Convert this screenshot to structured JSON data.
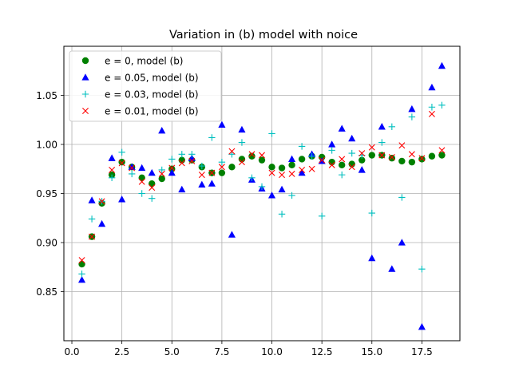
{
  "chart_data": {
    "type": "scatter",
    "title": "Variation in (b) model with noice",
    "xlabel": "",
    "ylabel": "",
    "xlim": [
      -0.4,
      19.4
    ],
    "ylim": [
      0.8,
      1.1
    ],
    "xticks": [
      0.0,
      2.5,
      5.0,
      7.5,
      10.0,
      12.5,
      15.0,
      17.5
    ],
    "xtick_labels": [
      "0.0",
      "2.5",
      "5.0",
      "7.5",
      "10.0",
      "12.5",
      "15.0",
      "17.5"
    ],
    "yticks": [
      0.85,
      0.9,
      0.95,
      1.0,
      1.05
    ],
    "ytick_labels": [
      "0.85",
      "0.90",
      "0.95",
      "1.00",
      "1.05"
    ],
    "grid": true,
    "legend_position": "top-left",
    "x": [
      0.5,
      1.0,
      1.5,
      2.0,
      2.5,
      3.0,
      3.5,
      4.0,
      4.5,
      5.0,
      5.5,
      6.0,
      6.5,
      7.0,
      7.5,
      8.0,
      8.5,
      9.0,
      9.5,
      10.0,
      10.5,
      11.0,
      11.5,
      12.0,
      12.5,
      13.0,
      13.5,
      14.0,
      14.5,
      15.0,
      15.5,
      16.0,
      16.5,
      17.0,
      17.5,
      18.0,
      18.5
    ],
    "series": [
      {
        "name": "e = 0, model (b)",
        "marker": "circle",
        "color": "#008000",
        "values": [
          0.878,
          0.906,
          0.94,
          0.969,
          0.982,
          0.977,
          0.966,
          0.96,
          0.965,
          0.975,
          0.984,
          0.984,
          0.977,
          0.971,
          0.971,
          0.977,
          0.985,
          0.988,
          0.984,
          0.977,
          0.976,
          0.979,
          0.985,
          0.988,
          0.987,
          0.982,
          0.979,
          0.98,
          0.984,
          0.989,
          0.989,
          0.986,
          0.983,
          0.982,
          0.985,
          0.988,
          0.989
        ]
      },
      {
        "name": "e = 0.05, model (b)",
        "marker": "triangle",
        "color": "#0000ff",
        "values": [
          0.862,
          0.943,
          0.919,
          0.986,
          0.944,
          0.977,
          0.976,
          0.971,
          1.014,
          0.971,
          0.954,
          0.986,
          0.959,
          0.96,
          1.02,
          0.908,
          1.015,
          0.964,
          0.955,
          0.948,
          0.954,
          0.985,
          0.971,
          0.99,
          0.983,
          1.0,
          1.016,
          1.006,
          0.974,
          0.884,
          1.018,
          0.873,
          0.9,
          1.036,
          0.814,
          1.058,
          1.08
        ]
      },
      {
        "name": "e = 0.03, model (b)",
        "marker": "plus",
        "color": "#00bfbf",
        "values": [
          0.868,
          0.924,
          0.942,
          0.966,
          0.992,
          0.97,
          0.95,
          0.945,
          0.974,
          0.985,
          0.99,
          0.99,
          0.978,
          1.007,
          0.982,
          0.99,
          1.002,
          0.966,
          0.957,
          1.011,
          0.929,
          0.948,
          0.998,
          0.988,
          0.927,
          0.994,
          0.969,
          0.991,
          0.989,
          0.93,
          1.002,
          1.018,
          0.946,
          1.028,
          0.873,
          1.038,
          1.04
        ]
      },
      {
        "name": "e = 0.01, model (b)",
        "marker": "x",
        "color": "#ff0000",
        "values": [
          0.882,
          0.906,
          0.942,
          0.974,
          0.981,
          0.976,
          0.962,
          0.956,
          0.97,
          0.976,
          0.981,
          0.983,
          0.969,
          0.971,
          0.977,
          0.993,
          0.982,
          0.99,
          0.989,
          0.971,
          0.969,
          0.97,
          0.974,
          0.975,
          0.984,
          0.979,
          0.985,
          0.977,
          0.991,
          0.997,
          0.989,
          0.987,
          0.999,
          0.99,
          0.986,
          1.031,
          0.994
        ]
      }
    ]
  }
}
